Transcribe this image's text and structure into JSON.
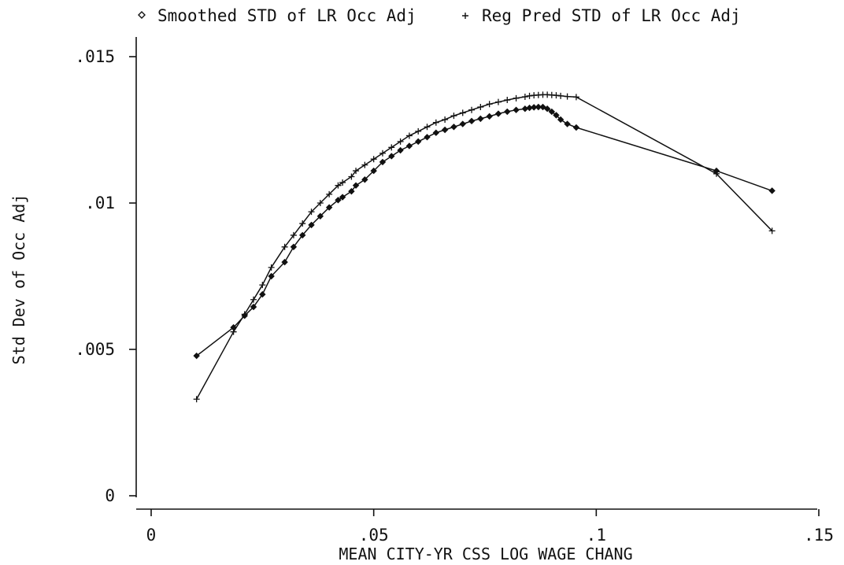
{
  "chart_data": {
    "type": "line",
    "xlabel": "MEAN CITY-YR CSS LOG WAGE CHANG",
    "ylabel": "Std Dev of Occ Adj",
    "xlim": [
      0,
      0.15
    ],
    "ylim": [
      0,
      0.015
    ],
    "x_ticks": [
      0,
      0.05,
      0.1,
      0.15
    ],
    "x_tick_labels": [
      "0",
      ".05",
      ".1",
      ".15"
    ],
    "y_ticks": [
      0,
      0.005,
      0.01,
      0.015
    ],
    "y_tick_labels": [
      "0",
      ".005",
      ".01",
      ".015"
    ],
    "legend_position": "top",
    "grid": false,
    "series": [
      {
        "name": "Smoothed STD of LR Occ Adj",
        "marker": "diamond",
        "x": [
          0.0102,
          0.0185,
          0.021,
          0.023,
          0.025,
          0.027,
          0.03,
          0.032,
          0.034,
          0.036,
          0.038,
          0.04,
          0.042,
          0.043,
          0.045,
          0.046,
          0.048,
          0.05,
          0.052,
          0.054,
          0.056,
          0.058,
          0.06,
          0.062,
          0.064,
          0.066,
          0.068,
          0.07,
          0.072,
          0.074,
          0.076,
          0.078,
          0.08,
          0.082,
          0.084,
          0.085,
          0.086,
          0.087,
          0.088,
          0.089,
          0.09,
          0.091,
          0.092,
          0.0935,
          0.0955,
          0.127,
          0.1395
        ],
        "y": [
          0.00478,
          0.00575,
          0.00615,
          0.00645,
          0.00688,
          0.0075,
          0.00798,
          0.0085,
          0.0089,
          0.00925,
          0.00955,
          0.00985,
          0.0101,
          0.0102,
          0.0104,
          0.0106,
          0.0108,
          0.0111,
          0.0114,
          0.0116,
          0.0118,
          0.01195,
          0.0121,
          0.01225,
          0.0124,
          0.0125,
          0.0126,
          0.0127,
          0.0128,
          0.01288,
          0.01296,
          0.01305,
          0.01312,
          0.01318,
          0.01322,
          0.01325,
          0.01327,
          0.01328,
          0.01328,
          0.01322,
          0.01312,
          0.013,
          0.01285,
          0.0127,
          0.01258,
          0.0111,
          0.01042
        ]
      },
      {
        "name": "Reg Pred STD of LR Occ Adj",
        "marker": "plus",
        "x": [
          0.0102,
          0.0185,
          0.021,
          0.023,
          0.025,
          0.027,
          0.03,
          0.032,
          0.034,
          0.036,
          0.038,
          0.04,
          0.042,
          0.043,
          0.045,
          0.046,
          0.048,
          0.05,
          0.052,
          0.054,
          0.056,
          0.058,
          0.06,
          0.062,
          0.064,
          0.066,
          0.068,
          0.07,
          0.072,
          0.074,
          0.076,
          0.078,
          0.08,
          0.082,
          0.084,
          0.085,
          0.086,
          0.087,
          0.088,
          0.089,
          0.09,
          0.091,
          0.092,
          0.0935,
          0.0955,
          0.127,
          0.1395
        ],
        "y": [
          0.0033,
          0.0056,
          0.0062,
          0.0067,
          0.0072,
          0.0078,
          0.0085,
          0.0089,
          0.0093,
          0.0097,
          0.01,
          0.0103,
          0.0106,
          0.0107,
          0.0109,
          0.0111,
          0.0113,
          0.0115,
          0.0117,
          0.0119,
          0.0121,
          0.0123,
          0.01245,
          0.0126,
          0.01275,
          0.01285,
          0.01298,
          0.01308,
          0.01318,
          0.01328,
          0.01338,
          0.01345,
          0.01352,
          0.01358,
          0.01363,
          0.01366,
          0.01368,
          0.01369,
          0.0137,
          0.0137,
          0.01369,
          0.01368,
          0.01366,
          0.01364,
          0.01362,
          0.011,
          0.00905
        ]
      }
    ]
  }
}
